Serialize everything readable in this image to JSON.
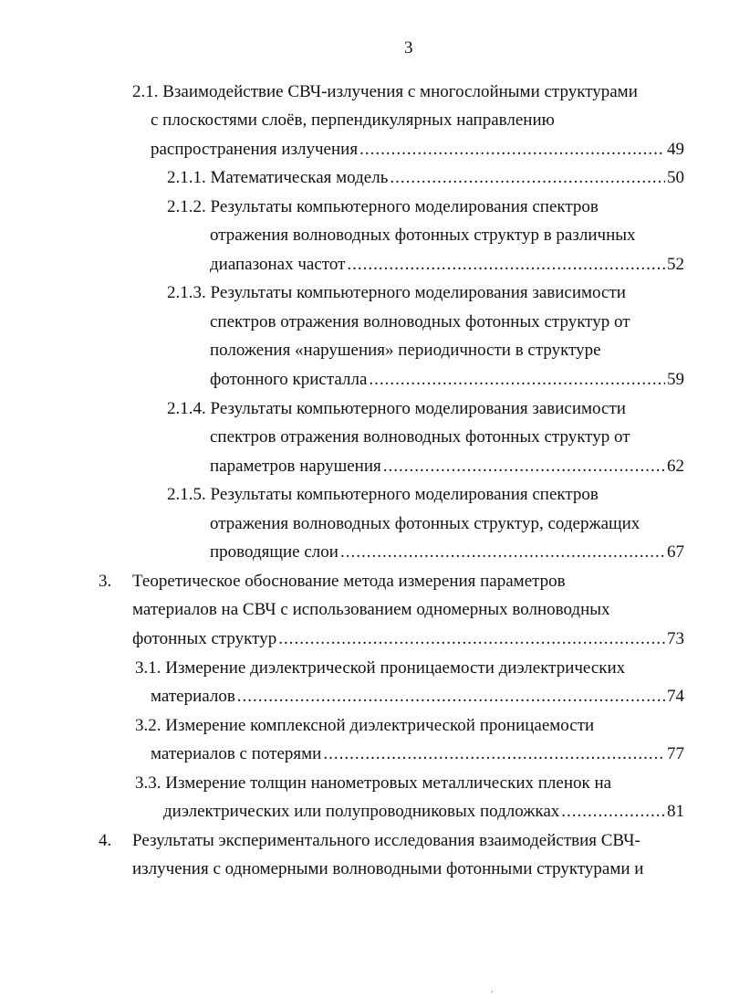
{
  "page_number": "3",
  "entries": [
    {
      "level": "section",
      "lines": [
        "2.1. Взаимодействие СВЧ-излучения с многослойными структурами",
        "с плоскостями слоёв, перпендикулярных направлению",
        "распространения излучения"
      ],
      "page": "49"
    },
    {
      "level": "subsection",
      "lines": [
        "2.1.1. Математическая модель"
      ],
      "page": "50"
    },
    {
      "level": "subsection",
      "lines": [
        "2.1.2. Результаты компьютерного моделирования спектров",
        "отражения волноводных фотонных структур в различных",
        "диапазонах частот"
      ],
      "page": "52"
    },
    {
      "level": "subsection",
      "lines": [
        "2.1.3. Результаты компьютерного моделирования зависимости",
        "спектров отражения волноводных фотонных структур от",
        "положения «нарушения» периодичности в структуре",
        "фотонного кристалла"
      ],
      "page": "59"
    },
    {
      "level": "subsection",
      "lines": [
        "2.1.4. Результаты компьютерного моделирования зависимости",
        "спектров отражения волноводных фотонных структур от",
        "параметров нарушения"
      ],
      "page": "62"
    },
    {
      "level": "subsection",
      "lines": [
        "2.1.5. Результаты компьютерного моделирования спектров",
        "отражения волноводных фотонных структур, содержащих",
        "проводящие слои"
      ],
      "page": "67"
    },
    {
      "level": "chapter",
      "number": "3.",
      "lines": [
        "Теоретическое обоснование метода  измерения параметров",
        "материалов на СВЧ с использованием одномерных волноводных",
        "фотонных структур"
      ],
      "page": "73"
    },
    {
      "level": "section3",
      "lines": [
        "3.1. Измерение диэлектрической проницаемости диэлектрических",
        "материалов"
      ],
      "page": "74"
    },
    {
      "level": "section3",
      "lines": [
        "3.2. Измерение комплексной диэлектрической проницаемости",
        "материалов с потерями"
      ],
      "page": "77"
    },
    {
      "level": "section3b",
      "lines": [
        "3.3. Измерение толщин нанометровых металлических пленок на",
        "диэлектрических или полупроводниковых подложках"
      ],
      "page": "81"
    },
    {
      "level": "chapter",
      "number": "4.",
      "lines": [
        "Результаты экспериментального исследования взаимодействия СВЧ-",
        "излучения с одномерными волноводными фотонными структурами и"
      ]
    }
  ]
}
